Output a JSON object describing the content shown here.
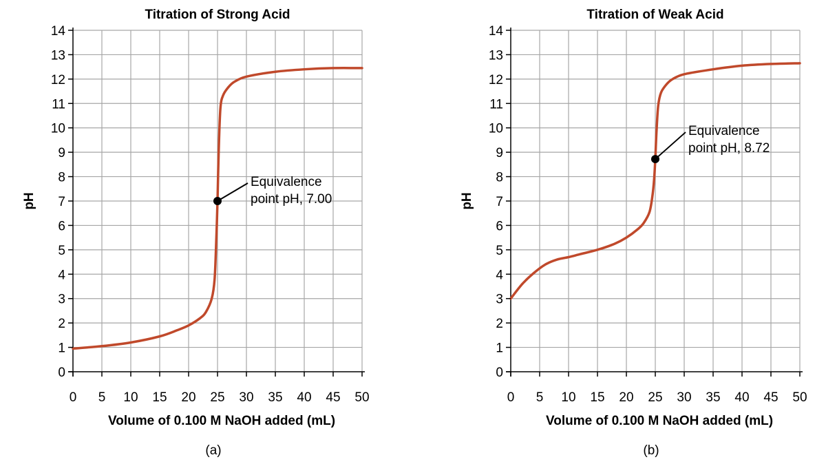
{
  "chart_data": [
    {
      "type": "line",
      "panel_label": "(a)",
      "title": "Titration of Strong Acid",
      "xlabel": "Volume of 0.100 M NaOH added (mL)",
      "ylabel": "pH",
      "xlim": [
        0,
        50
      ],
      "ylim": [
        0,
        14
      ],
      "xticks": [
        0,
        5,
        10,
        15,
        20,
        25,
        30,
        35,
        40,
        45,
        50
      ],
      "yticks": [
        0,
        1,
        2,
        3,
        4,
        5,
        6,
        7,
        8,
        9,
        10,
        11,
        12,
        13,
        14
      ],
      "grid": true,
      "series": [
        {
          "color": "#c0492b",
          "x": [
            0,
            5,
            10,
            15,
            18,
            20,
            22,
            23,
            24,
            24.5,
            24.8,
            25,
            25.2,
            25.5,
            26,
            27,
            28,
            30,
            35,
            40,
            45,
            50
          ],
          "y": [
            0.95,
            1.05,
            1.2,
            1.45,
            1.7,
            1.9,
            2.2,
            2.45,
            3.0,
            3.8,
            5.5,
            7.0,
            9.0,
            10.8,
            11.35,
            11.7,
            11.9,
            12.1,
            12.3,
            12.4,
            12.45,
            12.45
          ]
        }
      ],
      "annotation": {
        "x": 25,
        "y": 7.0,
        "line1": "Equivalence",
        "line2": "point pH, 7.00"
      }
    },
    {
      "type": "line",
      "panel_label": "(b)",
      "title": "Titration of Weak Acid",
      "xlabel": "Volume of 0.100 M NaOH added (mL)",
      "ylabel": "pH",
      "xlim": [
        0,
        50
      ],
      "ylim": [
        0,
        14
      ],
      "xticks": [
        0,
        5,
        10,
        15,
        20,
        25,
        30,
        35,
        40,
        45,
        50
      ],
      "yticks": [
        0,
        1,
        2,
        3,
        4,
        5,
        6,
        7,
        8,
        9,
        10,
        11,
        12,
        13,
        14
      ],
      "grid": true,
      "series": [
        {
          "color": "#c0492b",
          "x": [
            0,
            2,
            4,
            6,
            8,
            10,
            12,
            15,
            18,
            20,
            22,
            23,
            24,
            24.5,
            24.8,
            25,
            25.2,
            25.5,
            26,
            27,
            28,
            30,
            35,
            40,
            45,
            50
          ],
          "y": [
            3.0,
            3.6,
            4.05,
            4.4,
            4.6,
            4.7,
            4.82,
            5.0,
            5.25,
            5.5,
            5.85,
            6.1,
            6.55,
            7.2,
            7.9,
            8.72,
            9.8,
            10.9,
            11.45,
            11.8,
            12.0,
            12.2,
            12.4,
            12.55,
            12.62,
            12.65
          ]
        }
      ],
      "annotation": {
        "x": 25,
        "y": 8.72,
        "line1": "Equivalence",
        "line2": "point pH, 8.72"
      }
    }
  ]
}
